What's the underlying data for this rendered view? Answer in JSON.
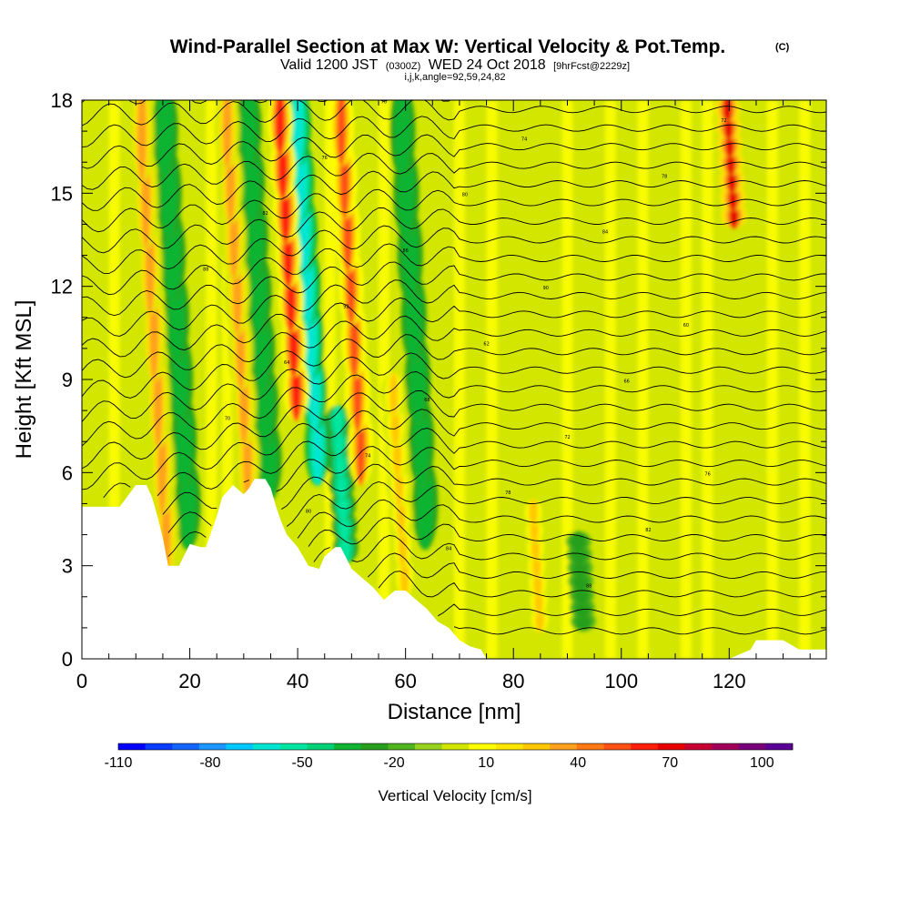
{
  "title": {
    "main": "Wind-Parallel Section at Max W: Vertical Velocity & Pot.Temp.",
    "copyright": "(C)",
    "valid_prefix": "Valid 1200 JST",
    "valid_utc": "(0300Z)",
    "valid_date": "WED 24 Oct 2018",
    "forecast": "[9hrFcst@2229z]",
    "indices": "i,j,k,angle=92,59,24,82"
  },
  "chart_data": {
    "type": "heatmap",
    "title": "Wind-Parallel Section at Max W: Vertical Velocity & Pot.Temp.",
    "xlabel": "Distance [nm]",
    "ylabel": "Height [Kft MSL]",
    "xlim": [
      0,
      138
    ],
    "ylim": [
      0,
      18
    ],
    "x_ticks": [
      0,
      20,
      40,
      60,
      80,
      100,
      120
    ],
    "y_ticks": [
      0,
      3,
      6,
      9,
      12,
      15,
      18
    ],
    "grid": false,
    "colorbar": {
      "title": "Vertical Velocity [cm/s]",
      "labeled_values": [
        -110,
        -80,
        -50,
        -20,
        10,
        40,
        70,
        100
      ],
      "range": [
        -110,
        110
      ],
      "step": 10,
      "colors": [
        "#0000ff",
        "#0a3cff",
        "#1464ff",
        "#1e96ff",
        "#00c8ff",
        "#00e6d2",
        "#00e6a0",
        "#00d278",
        "#10b432",
        "#28a01e",
        "#50b41e",
        "#96d21e",
        "#d2e600",
        "#ffff00",
        "#ffe600",
        "#ffc800",
        "#ffa01e",
        "#ff7814",
        "#ff5014",
        "#ff1e0a",
        "#e60000",
        "#c80032",
        "#a0005a",
        "#780078",
        "#5a0096"
      ]
    },
    "strong_updrafts": [
      {
        "x": 16,
        "z_range": [
          3,
          18
        ],
        "w": 50
      },
      {
        "x": 31,
        "z_range": [
          4,
          18
        ],
        "w": 50
      },
      {
        "x": 40,
        "z_range": [
          8,
          18
        ],
        "w": 80
      },
      {
        "x": 52,
        "z_range": [
          6,
          18
        ],
        "w": 70
      },
      {
        "x": 60,
        "z_range": [
          2,
          9
        ],
        "w": 40
      },
      {
        "x": 85,
        "z_range": [
          1,
          5
        ],
        "w": 40
      },
      {
        "x": 121,
        "z_range": [
          14,
          18
        ],
        "w": 90
      }
    ],
    "strong_downdrafts": [
      {
        "x": 20,
        "z_range": [
          4,
          18
        ],
        "w": -30
      },
      {
        "x": 35,
        "z_range": [
          4,
          18
        ],
        "w": -30
      },
      {
        "x": 44,
        "z_range": [
          6,
          18
        ],
        "w": -60
      },
      {
        "x": 49,
        "z_range": [
          3,
          8
        ],
        "w": -50
      },
      {
        "x": 64,
        "z_range": [
          4,
          18
        ],
        "w": -30
      },
      {
        "x": 93,
        "z_range": [
          1,
          4
        ],
        "w": -20
      }
    ],
    "terrain": {
      "x": [
        0,
        7,
        10,
        12,
        13,
        14,
        15,
        16,
        18,
        20,
        22,
        23,
        25,
        26,
        28,
        30,
        31,
        32,
        34,
        35,
        36,
        37,
        38,
        40,
        42,
        44,
        45,
        47,
        48,
        50,
        52,
        54,
        56,
        58,
        60,
        62,
        64,
        66,
        68,
        70,
        72,
        74,
        75,
        110,
        120,
        124,
        125,
        126,
        128,
        130,
        133,
        138
      ],
      "z": [
        4.9,
        4.9,
        5.6,
        5.6,
        5.2,
        4.6,
        3.9,
        3.0,
        3.0,
        3.7,
        3.6,
        3.6,
        4.6,
        5.2,
        5.6,
        5.3,
        5.5,
        5.8,
        5.8,
        5.5,
        4.9,
        4.4,
        4.0,
        3.6,
        3.0,
        2.9,
        3.3,
        3.6,
        3.6,
        2.9,
        2.6,
        2.3,
        1.9,
        2.2,
        2.2,
        1.9,
        1.6,
        1.2,
        1.0,
        0.6,
        0.4,
        0.3,
        0.0,
        0.0,
        0.0,
        0.3,
        0.6,
        0.6,
        0.6,
        0.6,
        0.3,
        0.3
      ]
    },
    "theta_contours": {
      "count": 30,
      "visible_labels": [
        "92",
        "90",
        "88",
        "86",
        "84",
        "82",
        "80",
        "78",
        "76",
        "74",
        "72",
        "70",
        "68",
        "66",
        "64",
        "62",
        "60"
      ]
    },
    "series": []
  }
}
